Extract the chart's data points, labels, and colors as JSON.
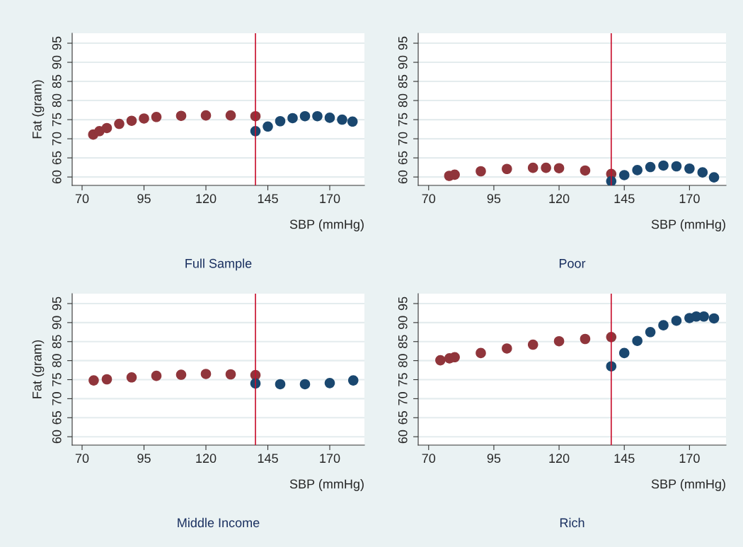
{
  "chart_data": [
    {
      "type": "scatter",
      "title": "Full Sample",
      "xlabel": "SBP (mmHg)",
      "ylabel": "Fat (gram)",
      "xlim": [
        66,
        184
      ],
      "ylim": [
        57.8,
        97.6
      ],
      "xticks": [
        70,
        95,
        120,
        145,
        170
      ],
      "yticks": [
        60,
        65,
        70,
        75,
        80,
        85,
        90,
        95
      ],
      "grid": "y",
      "marker": "circle",
      "ref_lines": [
        {
          "axis": "x",
          "value": 140,
          "color": "#c8102e"
        }
      ],
      "series": [
        {
          "color": "#90353b",
          "x": [
            74.5,
            77,
            80,
            85,
            90,
            95,
            100,
            110,
            120,
            130,
            140
          ],
          "values": [
            71.1,
            72.0,
            72.8,
            73.9,
            74.7,
            75.3,
            75.7,
            76.0,
            76.1,
            76.1,
            75.9
          ]
        },
        {
          "color": "#1a476f",
          "x": [
            140,
            145,
            150,
            155,
            160,
            165,
            170,
            175,
            179.2
          ],
          "values": [
            72.0,
            73.2,
            74.6,
            75.4,
            75.9,
            75.9,
            75.5,
            75.0,
            74.5
          ]
        }
      ]
    },
    {
      "type": "scatter",
      "title": "Poor",
      "xlabel": "SBP (mmHg)",
      "xlim": [
        66,
        184
      ],
      "ylim": [
        57.8,
        97.6
      ],
      "xticks": [
        70,
        95,
        120,
        145,
        170
      ],
      "yticks": [
        60,
        65,
        70,
        75,
        80,
        85,
        90,
        95
      ],
      "grid": "y",
      "marker": "circle",
      "ref_lines": [
        {
          "axis": "x",
          "value": 140,
          "color": "#c8102e"
        }
      ],
      "series": [
        {
          "color": "#90353b",
          "x": [
            77.9,
            80,
            90,
            100,
            110,
            115,
            120,
            130,
            140
          ],
          "values": [
            60.3,
            60.6,
            61.5,
            62.1,
            62.4,
            62.4,
            62.3,
            61.7,
            60.8
          ]
        },
        {
          "color": "#1a476f",
          "x": [
            140,
            145,
            150,
            155,
            160,
            165,
            170,
            175,
            179.4
          ],
          "values": [
            58.9,
            60.5,
            61.8,
            62.6,
            63.0,
            62.8,
            62.2,
            61.2,
            59.9
          ]
        }
      ]
    },
    {
      "type": "scatter",
      "title": "Middle Income",
      "xlabel": "SBP (mmHg)",
      "ylabel": "Fat (gram)",
      "xlim": [
        66,
        184
      ],
      "ylim": [
        57.8,
        97.6
      ],
      "xticks": [
        70,
        95,
        120,
        145,
        170
      ],
      "yticks": [
        60,
        65,
        70,
        75,
        80,
        85,
        90,
        95
      ],
      "grid": "y",
      "marker": "circle",
      "ref_lines": [
        {
          "axis": "x",
          "value": 140,
          "color": "#c8102e"
        }
      ],
      "series": [
        {
          "color": "#90353b",
          "x": [
            74.7,
            80,
            90,
            100,
            110,
            120,
            130,
            140
          ],
          "values": [
            74.8,
            75.1,
            75.6,
            76.0,
            76.3,
            76.5,
            76.4,
            76.2
          ]
        },
        {
          "color": "#1a476f",
          "x": [
            140,
            150,
            160,
            170,
            179.5
          ],
          "values": [
            74.0,
            73.8,
            73.8,
            74.1,
            74.8
          ]
        }
      ]
    },
    {
      "type": "scatter",
      "title": "Rich",
      "xlabel": "SBP (mmHg)",
      "xlim": [
        66,
        184
      ],
      "ylim": [
        57.8,
        97.6
      ],
      "xticks": [
        70,
        95,
        120,
        145,
        170
      ],
      "yticks": [
        60,
        65,
        70,
        75,
        80,
        85,
        90,
        95
      ],
      "grid": "y",
      "marker": "circle",
      "ref_lines": [
        {
          "axis": "x",
          "value": 140,
          "color": "#c8102e"
        }
      ],
      "series": [
        {
          "color": "#90353b",
          "x": [
            74.5,
            78,
            80,
            90,
            100,
            110,
            120,
            130,
            140
          ],
          "values": [
            80.1,
            80.6,
            80.9,
            82.0,
            83.2,
            84.2,
            85.1,
            85.7,
            86.2
          ]
        },
        {
          "color": "#1a476f",
          "x": [
            140,
            145,
            150,
            155,
            160,
            165,
            170,
            172.6,
            175.5,
            179.4
          ],
          "values": [
            78.5,
            82.0,
            85.2,
            87.5,
            89.3,
            90.5,
            91.2,
            91.6,
            91.6,
            91.1
          ]
        }
      ]
    }
  ]
}
